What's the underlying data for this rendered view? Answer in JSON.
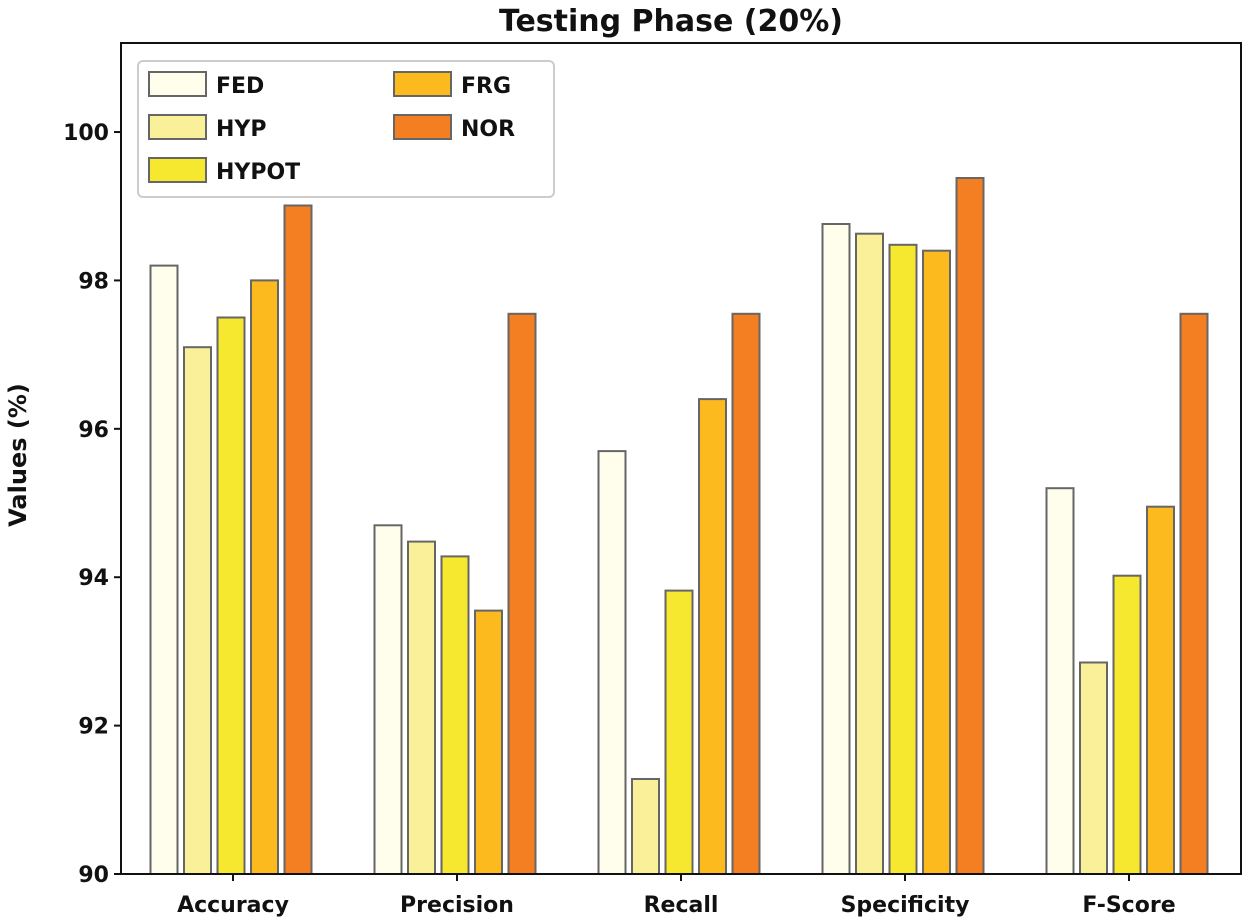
{
  "chart_data": {
    "type": "bar",
    "title": "Testing Phase (20%)",
    "xlabel": "",
    "ylabel": "Values (%)",
    "ylim": [
      90,
      101.2
    ],
    "yticks": [
      90,
      92,
      94,
      96,
      98,
      100
    ],
    "categories": [
      "Accuracy",
      "Precision",
      "Recall",
      "Specificity",
      "F-Score"
    ],
    "legend_position": "upper-left",
    "series": [
      {
        "name": "FED",
        "color": "#FFFDEB",
        "values": [
          98.2,
          94.7,
          95.7,
          98.76,
          95.2
        ]
      },
      {
        "name": "HYP",
        "color": "#FAF09A",
        "values": [
          97.1,
          94.48,
          91.28,
          98.63,
          92.85
        ]
      },
      {
        "name": "HYPOT",
        "color": "#F5E82E",
        "values": [
          97.5,
          94.28,
          93.82,
          98.48,
          94.02
        ]
      },
      {
        "name": "FRG",
        "color": "#FCBA1E",
        "values": [
          98.0,
          93.55,
          96.4,
          98.4,
          94.95
        ]
      },
      {
        "name": "NOR",
        "color": "#F47E22",
        "values": [
          99.01,
          97.55,
          97.55,
          99.38,
          97.55
        ]
      }
    ]
  }
}
